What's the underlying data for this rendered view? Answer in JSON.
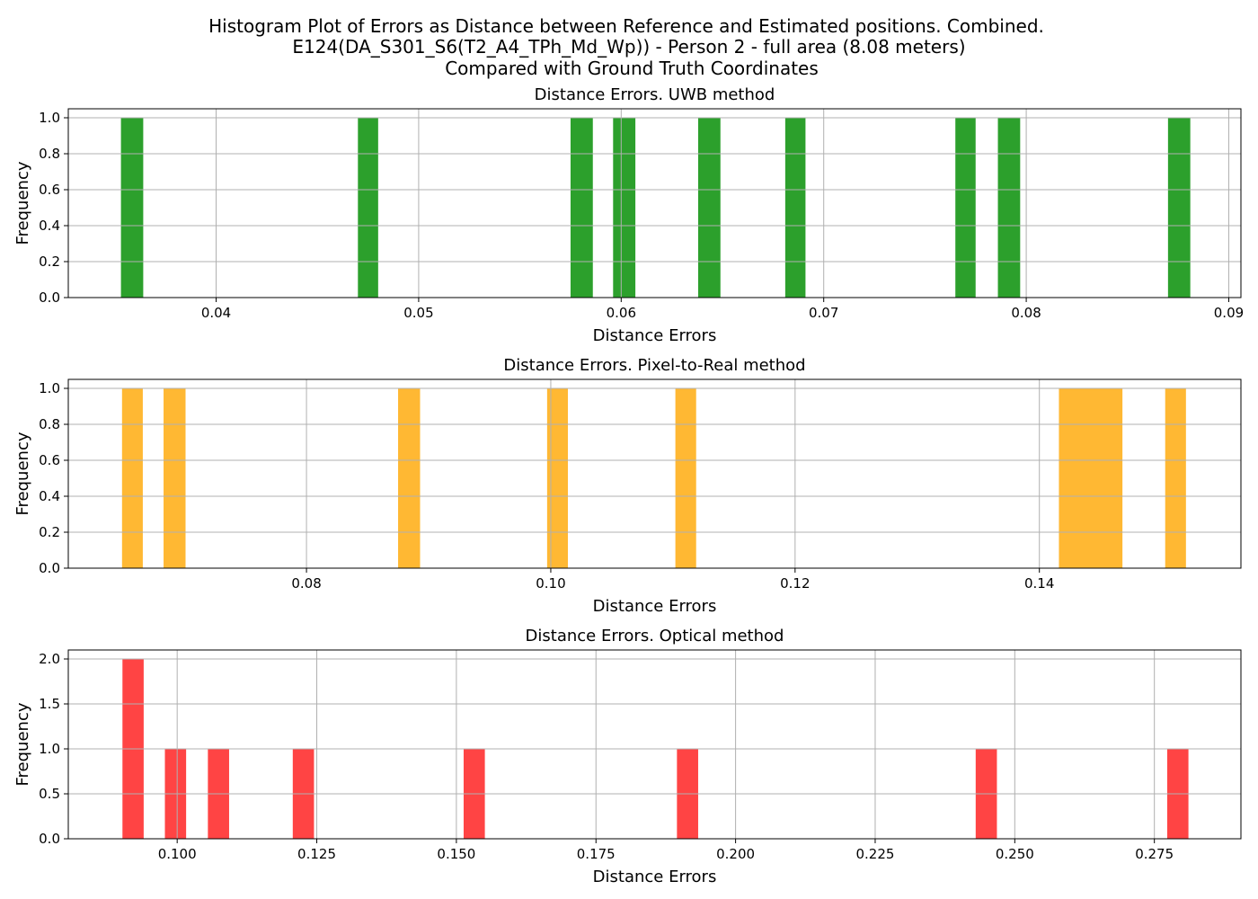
{
  "figure": {
    "title_lines": [
      "Histogram Plot of Errors as Distance between Reference and Estimated positions. Combined.",
      "E124(DA_S301_S6(T2_A4_TPh_Md_Wp)) - Person 2 - full area (8.08 meters)",
      "Compared with Ground Truth Coordinates"
    ]
  },
  "chart_data": [
    {
      "type": "bar",
      "title": "Distance Errors. UWB method",
      "xlabel": "Distance Errors",
      "ylabel": "Frequency",
      "color": "#2ca02c",
      "xlim": [
        0.0327,
        0.0906
      ],
      "ylim": [
        0,
        1.05
      ],
      "xticks": [
        0.04,
        0.05,
        0.06,
        0.07,
        0.08,
        0.09
      ],
      "xtick_labels": [
        "0.04",
        "0.05",
        "0.06",
        "0.07",
        "0.08",
        "0.09"
      ],
      "yticks": [
        0,
        0.2,
        0.4,
        0.6,
        0.8,
        1.0
      ],
      "ytick_labels": [
        "0.0",
        "0.2",
        "0.4",
        "0.6",
        "0.8",
        "1.0"
      ],
      "grid": true,
      "bars": [
        {
          "x0": 0.0353,
          "x1": 0.0364,
          "count": 1
        },
        {
          "x0": 0.047,
          "x1": 0.048,
          "count": 1
        },
        {
          "x0": 0.0575,
          "x1": 0.0586,
          "count": 1
        },
        {
          "x0": 0.0596,
          "x1": 0.0607,
          "count": 1
        },
        {
          "x0": 0.0638,
          "x1": 0.0649,
          "count": 1
        },
        {
          "x0": 0.0681,
          "x1": 0.0691,
          "count": 1
        },
        {
          "x0": 0.0765,
          "x1": 0.0775,
          "count": 1
        },
        {
          "x0": 0.0786,
          "x1": 0.0797,
          "count": 1
        },
        {
          "x0": 0.087,
          "x1": 0.0881,
          "count": 1
        }
      ]
    },
    {
      "type": "bar",
      "title": "Distance Errors. Pixel-to-Real method",
      "xlabel": "Distance Errors",
      "ylabel": "Frequency",
      "color": "#ffb833",
      "xlim": [
        0.0605,
        0.1565
      ],
      "ylim": [
        0,
        1.05
      ],
      "xticks": [
        0.08,
        0.1,
        0.12,
        0.14
      ],
      "xtick_labels": [
        "0.08",
        "0.10",
        "0.12",
        "0.14"
      ],
      "yticks": [
        0,
        0.2,
        0.4,
        0.6,
        0.8,
        1.0
      ],
      "ytick_labels": [
        "0.0",
        "0.2",
        "0.4",
        "0.6",
        "0.8",
        "1.0"
      ],
      "grid": true,
      "bars": [
        {
          "x0": 0.0649,
          "x1": 0.0666,
          "count": 1
        },
        {
          "x0": 0.0683,
          "x1": 0.0701,
          "count": 1
        },
        {
          "x0": 0.0875,
          "x1": 0.0893,
          "count": 1
        },
        {
          "x0": 0.0997,
          "x1": 0.1014,
          "count": 1
        },
        {
          "x0": 0.1102,
          "x1": 0.1119,
          "count": 1
        },
        {
          "x0": 0.1416,
          "x1": 0.1468,
          "count": 1
        },
        {
          "x0": 0.1503,
          "x1": 0.152,
          "count": 1
        }
      ]
    },
    {
      "type": "bar",
      "title": "Distance Errors. Optical method",
      "xlabel": "Distance Errors",
      "ylabel": "Frequency",
      "color": "#ff4444",
      "xlim": [
        0.0805,
        0.2905
      ],
      "ylim": [
        0,
        2.1
      ],
      "xticks": [
        0.1,
        0.125,
        0.15,
        0.175,
        0.2,
        0.225,
        0.25,
        0.275
      ],
      "xtick_labels": [
        "0.100",
        "0.125",
        "0.150",
        "0.175",
        "0.200",
        "0.225",
        "0.250",
        "0.275"
      ],
      "yticks": [
        0,
        0.5,
        1.0,
        1.5,
        2.0
      ],
      "ytick_labels": [
        "0.0",
        "0.5",
        "1.0",
        "1.5",
        "2.0"
      ],
      "grid": true,
      "bars": [
        {
          "x0": 0.0902,
          "x1": 0.094,
          "count": 2
        },
        {
          "x0": 0.0978,
          "x1": 0.1016,
          "count": 1
        },
        {
          "x0": 0.1055,
          "x1": 0.1093,
          "count": 1
        },
        {
          "x0": 0.1207,
          "x1": 0.1245,
          "count": 1
        },
        {
          "x0": 0.1513,
          "x1": 0.1551,
          "count": 1
        },
        {
          "x0": 0.1895,
          "x1": 0.1933,
          "count": 1
        },
        {
          "x0": 0.243,
          "x1": 0.2468,
          "count": 1
        },
        {
          "x0": 0.2773,
          "x1": 0.2811,
          "count": 1
        }
      ]
    }
  ]
}
